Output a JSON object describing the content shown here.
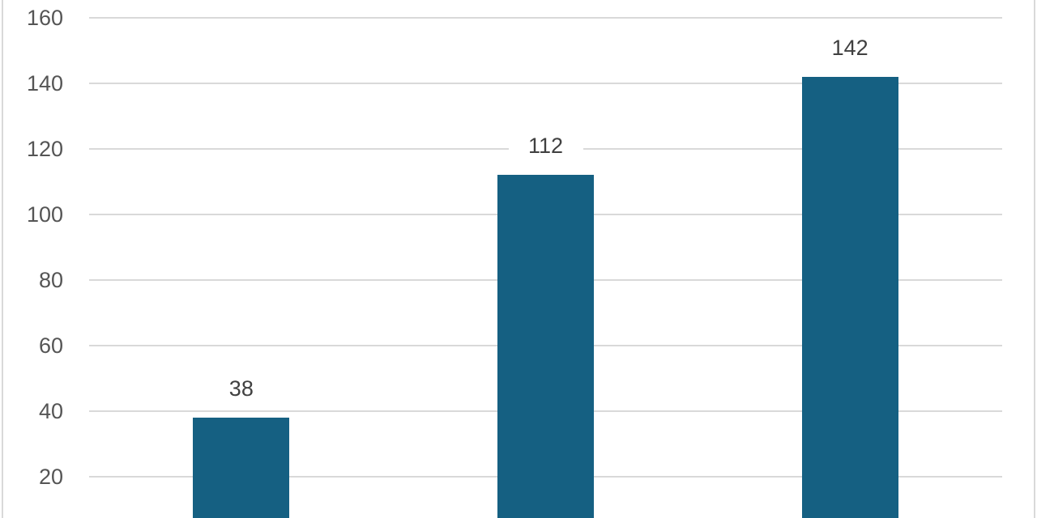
{
  "colors": {
    "background": "#ffffff",
    "bar": "#156082",
    "gridline": "#d9d9d9",
    "chart_border": "#d9d9d9",
    "axis_label": "#555555",
    "data_label": "#404040",
    "data_label_bg": "#ffffff"
  },
  "chart_data": {
    "type": "bar",
    "categories": [
      "",
      "",
      ""
    ],
    "values": [
      38,
      112,
      142
    ],
    "data_labels": [
      "38",
      "112",
      "142"
    ],
    "title": "",
    "xlabel": "",
    "ylabel": "",
    "y_ticks": [
      160,
      140,
      120,
      100,
      80,
      60,
      40,
      20
    ],
    "ylim": [
      0,
      160
    ],
    "grid": true,
    "legend": false,
    "notes": "single teal series, value labels above bars, x-axis cropped out of view at bottom"
  }
}
